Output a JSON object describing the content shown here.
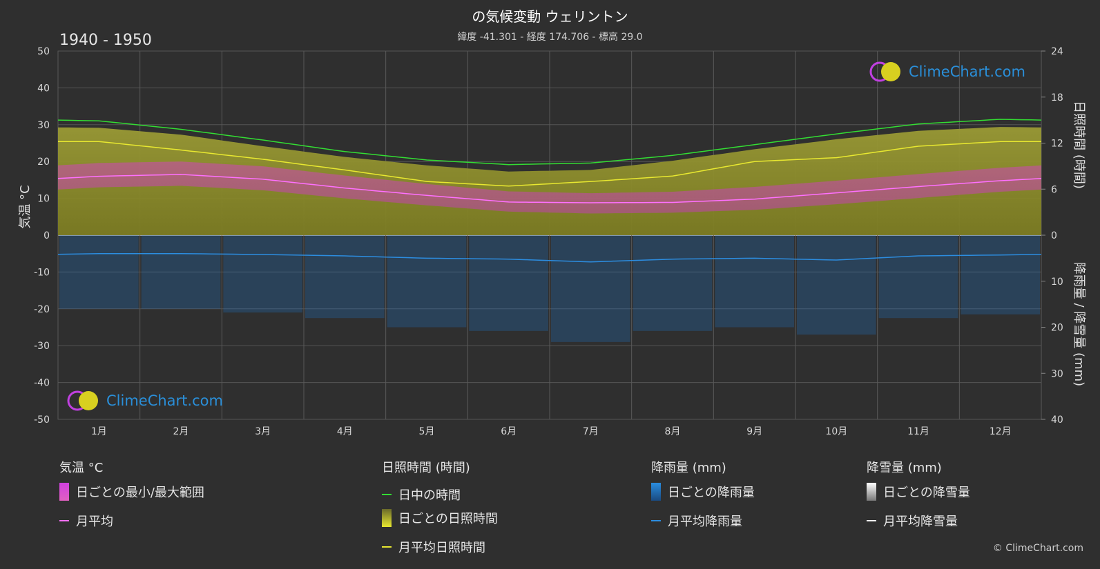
{
  "title": "の気候変動 ウェリントン",
  "subtitle": "緯度 -41.301 - 経度 174.706 - 標高 29.0",
  "period": "1940 - 1950",
  "brand": "ClimeChart.com",
  "copyright": "© ClimeChart.com",
  "colors": {
    "background": "#2f2f2f",
    "daylight": "#33dd33",
    "sunshine_line": "#e8e830",
    "sunshine_fill": "#8e8e2e",
    "temp_band": "#e040c0",
    "temp_line": "#ff70ff",
    "rain": "#1f78c8",
    "rain_line": "#2c8de0",
    "snow_line": "#ffffff"
  },
  "legend": {
    "temperature": {
      "heading": "気温 °C",
      "range": "日ごとの最小/最大範囲",
      "mean": "月平均"
    },
    "sunshine": {
      "heading": "日照時間 (時間)",
      "daylight": "日中の時間",
      "daily": "日ごとの日照時間",
      "mean": "月平均日照時間"
    },
    "rain": {
      "heading": "降雨量 (mm)",
      "daily": "日ごとの降雨量",
      "mean": "月平均降雨量"
    },
    "snow": {
      "heading": "降雪量 (mm)",
      "daily": "日ごとの降雪量",
      "mean": "月平均降雪量"
    }
  },
  "chart_data": {
    "type": "line",
    "categories": [
      "1月",
      "2月",
      "3月",
      "4月",
      "5月",
      "6月",
      "7月",
      "8月",
      "9月",
      "10月",
      "11月",
      "12月"
    ],
    "y_left": {
      "label": "気温 °C",
      "ticks": [
        50,
        40,
        30,
        20,
        10,
        0,
        -10,
        -20,
        -30,
        -40,
        -50
      ],
      "ylim": [
        -50,
        50
      ]
    },
    "y_right_top": {
      "label": "日照時間 (時間)",
      "ticks": [
        24,
        18,
        12,
        6,
        0
      ],
      "ylim": [
        0,
        24
      ]
    },
    "y_right_bottom": {
      "label": "降雨量 / 降雪量 (mm)",
      "ticks": [
        0,
        10,
        20,
        30,
        40
      ],
      "ylim": [
        0,
        40
      ]
    },
    "grid": true,
    "series": [
      {
        "name": "日中の時間",
        "unit": "hours",
        "values": [
          14.9,
          13.8,
          12.4,
          10.9,
          9.8,
          9.2,
          9.4,
          10.4,
          11.8,
          13.2,
          14.5,
          15.1
        ]
      },
      {
        "name": "月平均日照時間",
        "unit": "hours",
        "values": [
          12.2,
          11.1,
          9.9,
          8.5,
          7.0,
          6.4,
          7.0,
          7.7,
          9.6,
          10.1,
          11.6,
          12.2
        ]
      },
      {
        "name": "日ごとの日照時間",
        "unit": "hours",
        "values": [
          14.0,
          13.1,
          11.6,
          10.2,
          9.1,
          8.3,
          8.5,
          9.7,
          11.2,
          12.5,
          13.6,
          14.1
        ]
      },
      {
        "name": "月平均",
        "unit": "°C",
        "values": [
          16.0,
          16.5,
          15.2,
          12.8,
          10.8,
          9.0,
          8.8,
          8.9,
          9.8,
          11.5,
          13.2,
          14.8
        ]
      },
      {
        "name": "日ごとの最小/最大範囲",
        "unit": "°C",
        "min": [
          13.0,
          13.4,
          12.2,
          10.0,
          8.1,
          6.4,
          5.9,
          6.1,
          6.9,
          8.4,
          10.1,
          11.8
        ],
        "max": [
          19.6,
          20.0,
          18.7,
          16.2,
          13.9,
          11.9,
          11.4,
          11.8,
          13.1,
          14.8,
          16.6,
          18.3
        ]
      },
      {
        "name": "月平均降雨量",
        "unit": "mm",
        "values": [
          4.0,
          4.0,
          4.2,
          4.5,
          5.0,
          5.2,
          5.8,
          5.2,
          5.0,
          5.4,
          4.5,
          4.3
        ]
      },
      {
        "name": "月平均降雪量",
        "unit": "mm",
        "values": [
          0,
          0,
          0,
          0,
          0,
          0,
          0,
          0,
          0,
          0,
          0,
          0
        ]
      }
    ]
  }
}
